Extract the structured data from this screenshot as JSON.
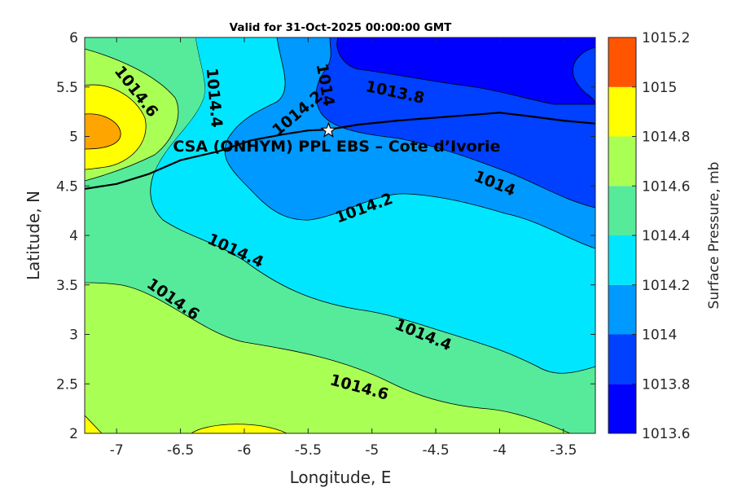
{
  "chart_data": {
    "type": "contourf",
    "title": "Valid for 31-Oct-2025 00:00:00 GMT",
    "xlabel": "Longitude, E",
    "ylabel": "Latitude, N",
    "xlim": [
      -7.25,
      -3.25
    ],
    "ylim": [
      2,
      6
    ],
    "x_ticks": [
      -7,
      -6.5,
      -6,
      -5.5,
      -5,
      -4.5,
      -4,
      -3.5
    ],
    "x_tick_labels": [
      "-7",
      "-6.5",
      "-6",
      "-5.5",
      "-5",
      "-4.5",
      "-4",
      "-3.5"
    ],
    "y_ticks": [
      2,
      2.5,
      3,
      3.5,
      4,
      4.5,
      5,
      5.5,
      6
    ],
    "y_tick_labels": [
      "2",
      "2.5",
      "3",
      "3.5",
      "4",
      "4.5",
      "5",
      "5.5",
      "6"
    ],
    "colorbar": {
      "label": "Surface Pressure, mb",
      "levels": [
        1013.6,
        1013.8,
        1014,
        1014.2,
        1014.4,
        1014.6,
        1014.8,
        1015,
        1015.2
      ],
      "tick_labels": [
        "1013.6",
        "1013.8",
        "1014",
        "1014.2",
        "1014.4",
        "1014.6",
        "1014.8",
        "1015",
        "1015.2"
      ],
      "colors": [
        "#0000ff",
        "#0040ff",
        "#0099ff",
        "#00e6ff",
        "#55eb9b",
        "#aaff55",
        "#ffff00",
        "#ffa500",
        "#ff5500"
      ]
    },
    "contour_labels": [
      {
        "text": "1014.6",
        "x": -6.85,
        "y": 5.45,
        "angle": 52
      },
      {
        "text": "1014.4",
        "x": -6.24,
        "y": 5.39,
        "angle": 85
      },
      {
        "text": "1014.2",
        "x": -5.58,
        "y": 5.23,
        "angle": -40
      },
      {
        "text": "1014",
        "x": -5.37,
        "y": 5.52,
        "angle": 80
      },
      {
        "text": "1013.8",
        "x": -4.82,
        "y": 5.44,
        "angle": 12
      },
      {
        "text": "1014",
        "x": -4.04,
        "y": 4.52,
        "angle": 22
      },
      {
        "text": "1014.2",
        "x": -5.06,
        "y": 4.27,
        "angle": -20
      },
      {
        "text": "1014.4",
        "x": -6.07,
        "y": 3.84,
        "angle": 25
      },
      {
        "text": "1014.6",
        "x": -6.56,
        "y": 3.35,
        "angle": 35
      },
      {
        "text": "1014.4",
        "x": -4.6,
        "y": 2.99,
        "angle": 22
      },
      {
        "text": "1014.6",
        "x": -5.1,
        "y": 2.46,
        "angle": 15
      }
    ],
    "site": {
      "name": "CSA (ONHYM) PPL EBS  – Cote d’Ivorie",
      "lon": -5.34,
      "lat": 5.06
    },
    "coastline": [
      [
        -7.25,
        4.47
      ],
      [
        -7.0,
        4.52
      ],
      [
        -6.75,
        4.62
      ],
      [
        -6.5,
        4.76
      ],
      [
        -6.2,
        4.85
      ],
      [
        -5.95,
        4.96
      ],
      [
        -5.7,
        5.02
      ],
      [
        -5.5,
        5.06
      ],
      [
        -5.34,
        5.07
      ],
      [
        -5.1,
        5.12
      ],
      [
        -4.8,
        5.16
      ],
      [
        -4.5,
        5.19
      ],
      [
        -4.2,
        5.22
      ],
      [
        -4.0,
        5.24
      ],
      [
        -3.8,
        5.21
      ],
      [
        -3.5,
        5.16
      ],
      [
        -3.25,
        5.13
      ]
    ]
  }
}
